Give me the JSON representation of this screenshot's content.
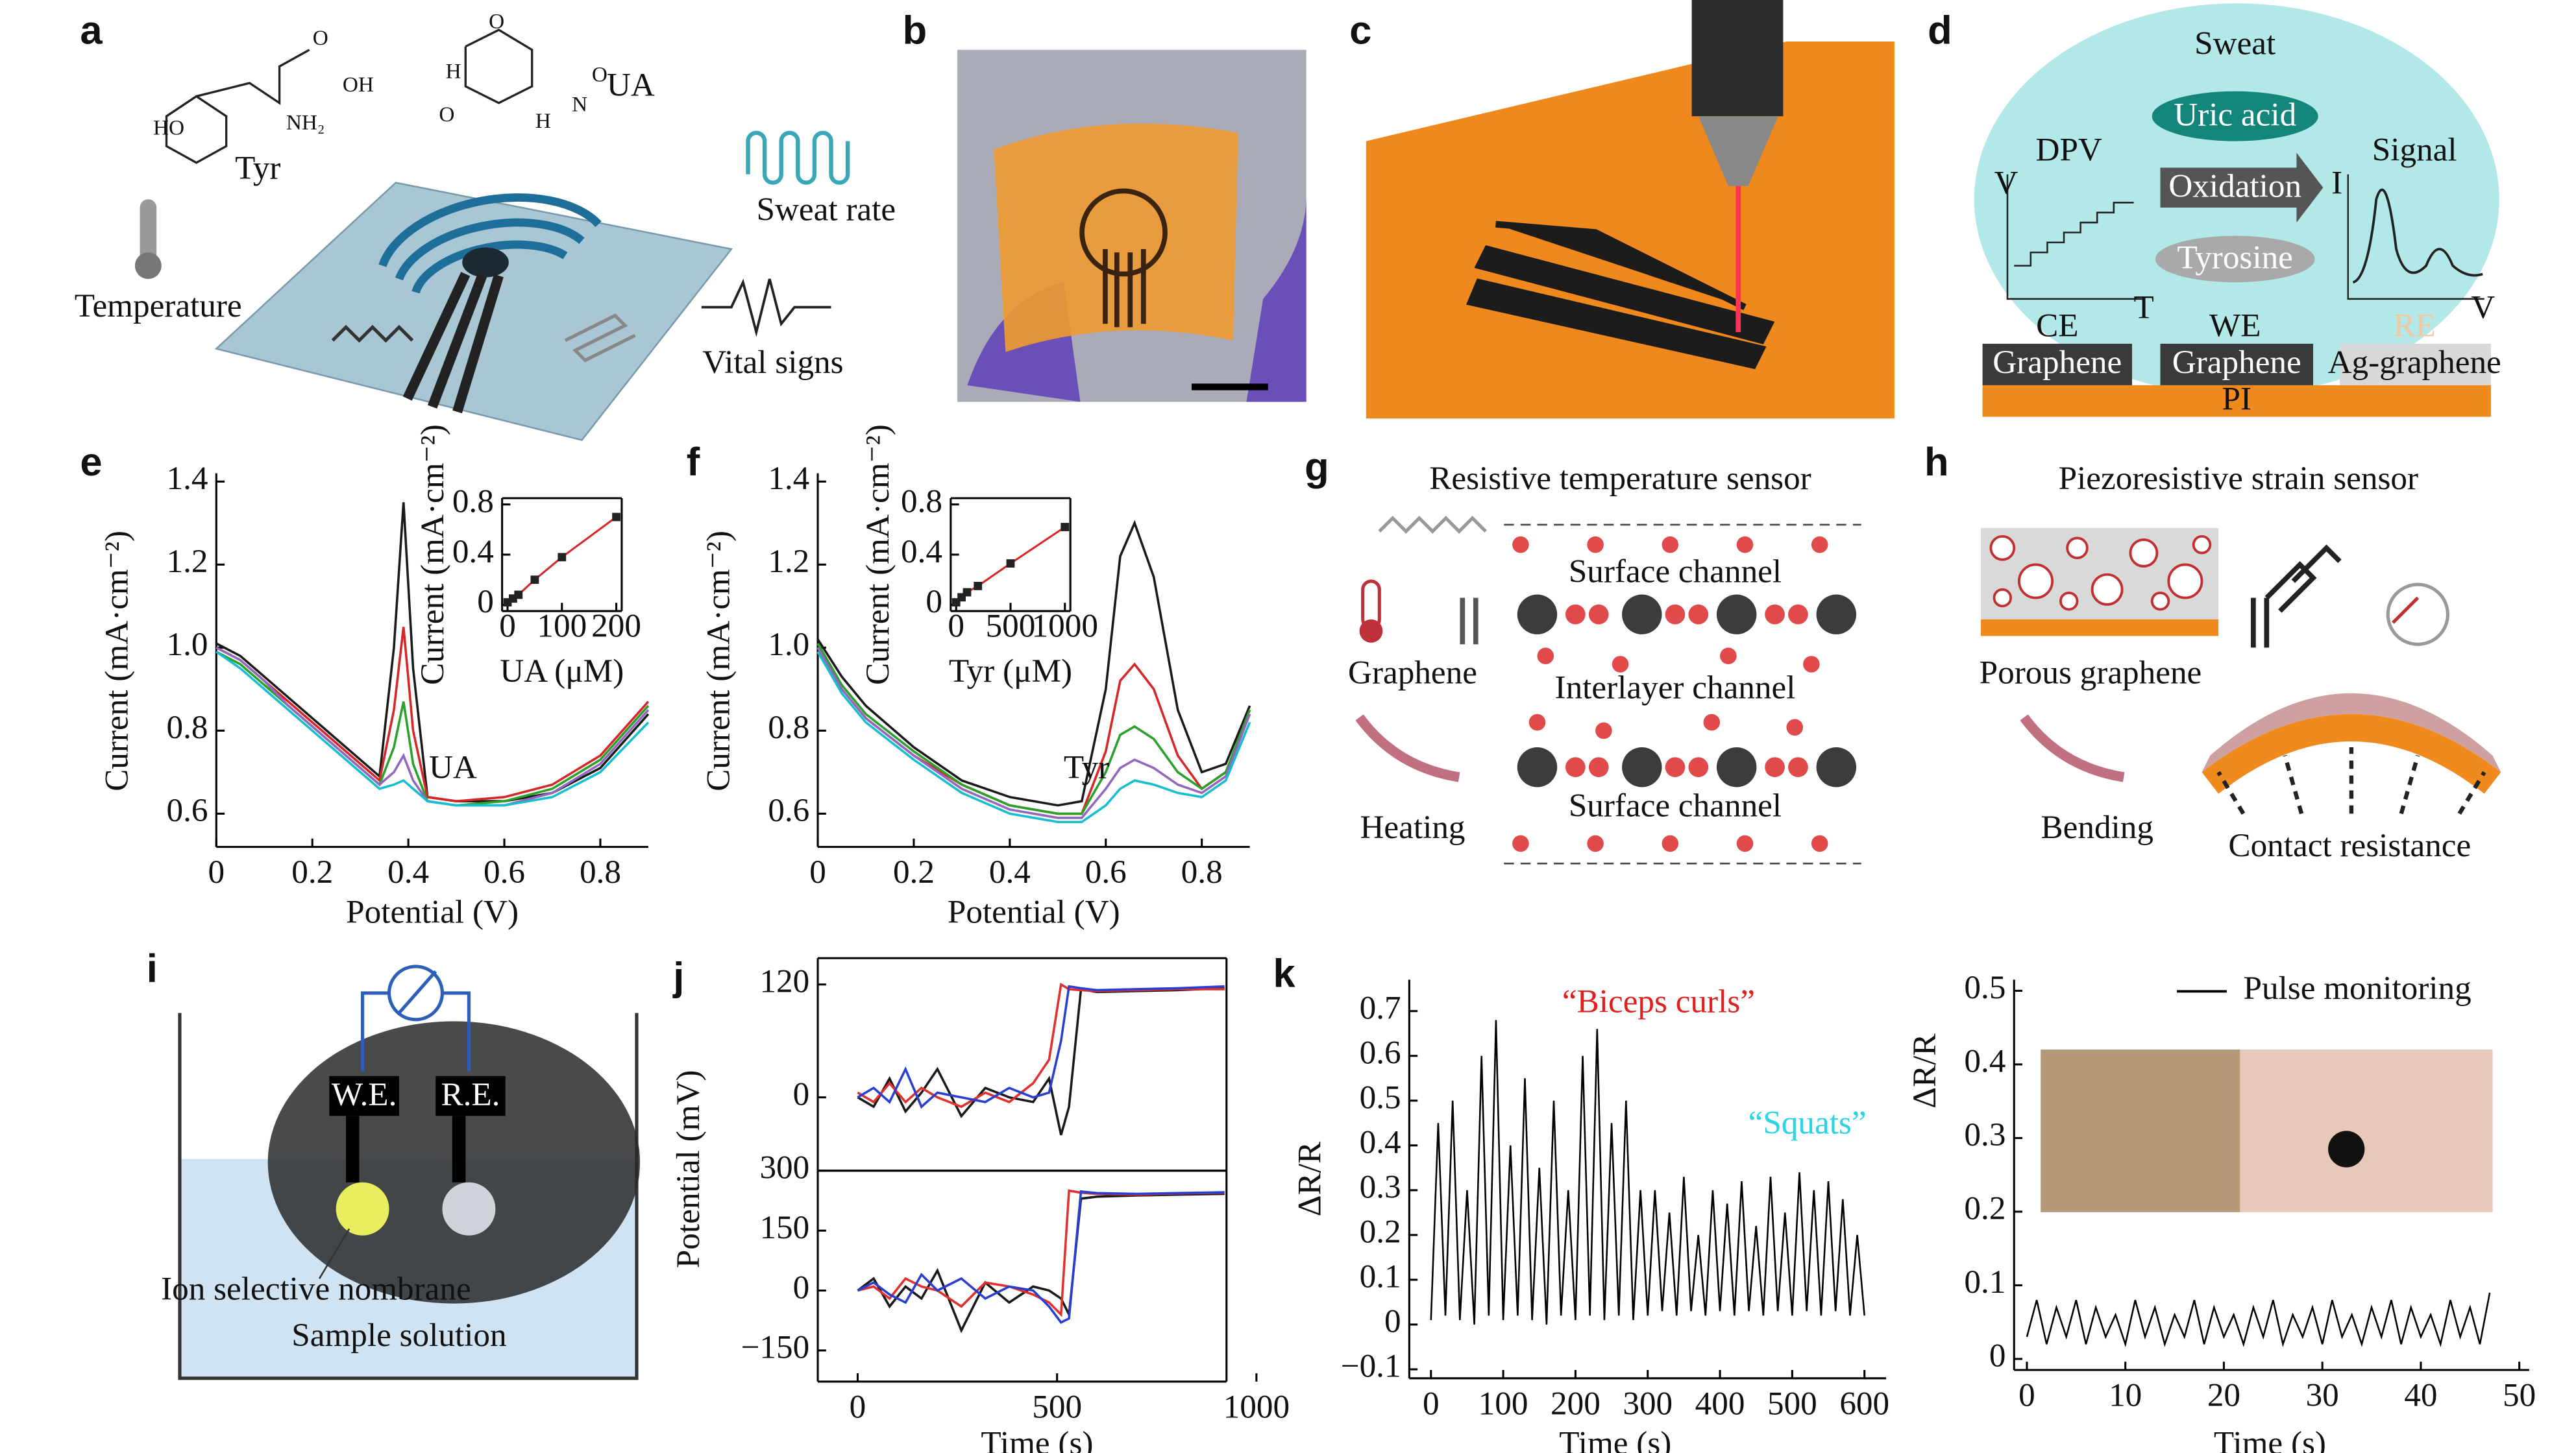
{
  "panel_labels": [
    "a",
    "b",
    "c",
    "d",
    "e",
    "f",
    "g",
    "h",
    "i",
    "j",
    "k"
  ],
  "panel_a": {
    "tyr": "Tyr",
    "ua": "UA",
    "temperature": "Temperature",
    "sweat_rate": "Sweat rate",
    "vital_signs": "Vital signs",
    "atoms": [
      "HO",
      "O",
      "OH",
      "NH₂",
      "O",
      "O",
      "O",
      "H",
      "N",
      "H"
    ]
  },
  "panel_d": {
    "sweat": "Sweat",
    "uric_acid": "Uric acid",
    "dpv": "DPV",
    "signal": "Signal",
    "oxidation": "Oxidation",
    "tyrosine": "Tyrosine",
    "axis_v": "V",
    "axis_t": "T",
    "axis_i": "I",
    "axis_v2": "V",
    "electrodes": [
      "CE",
      "WE",
      "RE"
    ],
    "materials": [
      "Graphene",
      "Graphene",
      "Ag-graphene"
    ],
    "substrate": "PI"
  },
  "panel_g": {
    "title": "Resistive temperature sensor",
    "channels": [
      "Surface channel",
      "Interlayer channel",
      "Surface channel"
    ],
    "graphene": "Graphene",
    "heating": "Heating"
  },
  "panel_h": {
    "title": "Piezoresistive strain sensor",
    "porous": "Porous graphene",
    "bending": "Bending",
    "contact": "Contact resistance"
  },
  "panel_i": {
    "we": "W.E.",
    "re": "R.E.",
    "membrane": "Ion selective nombrane",
    "solution": "Sample solution"
  },
  "chart_data": [
    {
      "type": "line",
      "xlabel": "Potential (V)",
      "ylabel": "Current (mA·cm⁻²)",
      "x": [
        0,
        0.05,
        0.1,
        0.15,
        0.2,
        0.25,
        0.3,
        0.34,
        0.37,
        0.39,
        0.41,
        0.44,
        0.5,
        0.6,
        0.7,
        0.8,
        0.9
      ],
      "series": [
        {
          "color": "#1a1a1a",
          "values": [
            1.01,
            0.98,
            0.93,
            0.88,
            0.83,
            0.78,
            0.73,
            0.69,
            1.0,
            1.35,
            0.95,
            0.64,
            0.63,
            0.63,
            0.65,
            0.71,
            0.84
          ]
        },
        {
          "color": "#d62728",
          "values": [
            1.0,
            0.97,
            0.92,
            0.87,
            0.82,
            0.77,
            0.72,
            0.68,
            0.85,
            1.05,
            0.8,
            0.64,
            0.63,
            0.64,
            0.67,
            0.74,
            0.87
          ]
        },
        {
          "color": "#2ca02c",
          "values": [
            0.99,
            0.96,
            0.91,
            0.86,
            0.81,
            0.76,
            0.71,
            0.67,
            0.76,
            0.87,
            0.72,
            0.63,
            0.62,
            0.63,
            0.66,
            0.73,
            0.86
          ]
        },
        {
          "color": "#9467bd",
          "values": [
            1.0,
            0.97,
            0.92,
            0.86,
            0.81,
            0.76,
            0.71,
            0.67,
            0.7,
            0.74,
            0.68,
            0.63,
            0.62,
            0.62,
            0.65,
            0.72,
            0.85
          ]
        },
        {
          "color": "#17becf",
          "values": [
            0.99,
            0.95,
            0.9,
            0.85,
            0.8,
            0.75,
            0.7,
            0.66,
            0.67,
            0.68,
            0.66,
            0.63,
            0.62,
            0.62,
            0.64,
            0.7,
            0.82
          ]
        }
      ],
      "xlim": [
        0,
        0.9
      ],
      "ylim": [
        0.52,
        1.42
      ],
      "xticks": [
        0,
        0.2,
        0.4,
        0.6,
        0.8
      ],
      "yticks": [
        0.6,
        0.8,
        {
          "value": 1,
          "label": "1.0"
        },
        1.2,
        1.4
      ],
      "annotations": [
        {
          "text": "UA"
        }
      ]
    },
    {
      "type": "scatter",
      "xlabel": "UA (μM)",
      "ylabel": "Current (mA·cm⁻²)",
      "x": [
        0,
        10,
        20,
        50,
        100,
        200
      ],
      "series": [
        {
          "color": "#222",
          "line_color": "#d62728",
          "values": [
            0.02,
            0.05,
            0.08,
            0.2,
            0.38,
            0.7
          ]
        }
      ],
      "xlim": [
        -10,
        210
      ],
      "ylim": [
        -0.05,
        0.85
      ],
      "xticks": [
        0,
        100,
        200
      ],
      "yticks": [
        0,
        0.4,
        0.8
      ]
    },
    {
      "type": "line",
      "xlabel": "Potential (V)",
      "ylabel": "Current (mA·cm⁻²)",
      "x": [
        0,
        0.05,
        0.1,
        0.2,
        0.3,
        0.4,
        0.5,
        0.55,
        0.6,
        0.63,
        0.66,
        0.7,
        0.75,
        0.8,
        0.85,
        0.9
      ],
      "series": [
        {
          "color": "#1a1a1a",
          "values": [
            1.02,
            0.93,
            0.86,
            0.76,
            0.68,
            0.64,
            0.62,
            0.63,
            0.9,
            1.22,
            1.3,
            1.17,
            0.85,
            0.7,
            0.72,
            0.86
          ]
        },
        {
          "color": "#d62728",
          "values": [
            1.0,
            0.9,
            0.83,
            0.74,
            0.67,
            0.62,
            0.6,
            0.6,
            0.75,
            0.92,
            0.96,
            0.9,
            0.74,
            0.66,
            0.7,
            0.84
          ]
        },
        {
          "color": "#2ca02c",
          "values": [
            1.01,
            0.91,
            0.84,
            0.75,
            0.67,
            0.62,
            0.6,
            0.6,
            0.7,
            0.79,
            0.81,
            0.78,
            0.7,
            0.66,
            0.7,
            0.85
          ]
        },
        {
          "color": "#9467bd",
          "values": [
            1.0,
            0.9,
            0.83,
            0.74,
            0.66,
            0.61,
            0.59,
            0.59,
            0.66,
            0.71,
            0.73,
            0.71,
            0.67,
            0.65,
            0.69,
            0.84
          ]
        },
        {
          "color": "#17becf",
          "values": [
            0.99,
            0.89,
            0.82,
            0.73,
            0.65,
            0.6,
            0.58,
            0.58,
            0.62,
            0.66,
            0.68,
            0.67,
            0.65,
            0.64,
            0.68,
            0.82
          ]
        }
      ],
      "xlim": [
        0,
        0.9
      ],
      "ylim": [
        0.52,
        1.42
      ],
      "xticks": [
        0,
        0.2,
        0.4,
        0.6,
        0.8
      ],
      "yticks": [
        0.6,
        0.8,
        {
          "value": 1,
          "label": "1.0"
        },
        1.2,
        1.4
      ],
      "annotations": [
        {
          "text": "Tyr"
        }
      ]
    },
    {
      "type": "scatter",
      "xlabel": "Tyr (μM)",
      "ylabel": "Current (mA·cm⁻²)",
      "x": [
        0,
        50,
        100,
        200,
        500,
        1000
      ],
      "series": [
        {
          "color": "#222",
          "line_color": "#d62728",
          "values": [
            0.02,
            0.06,
            0.1,
            0.15,
            0.33,
            0.62
          ]
        }
      ],
      "xlim": [
        -50,
        1050
      ],
      "ylim": [
        -0.05,
        0.85
      ],
      "xticks": [
        0,
        500,
        1000
      ],
      "yticks": [
        0,
        0.4,
        0.8
      ]
    },
    {
      "type": "line",
      "x": [
        0,
        40,
        80,
        120,
        160,
        200,
        260,
        320,
        380,
        440,
        480,
        510,
        530,
        560,
        600,
        700,
        800,
        920
      ],
      "series": [
        {
          "color": "#1a1a1a",
          "values": [
            0,
            -10,
            20,
            -15,
            5,
            30,
            -20,
            10,
            0,
            -5,
            20,
            -40,
            -10,
            115,
            112,
            113,
            114,
            116
          ]
        },
        {
          "color": "#e03030",
          "values": [
            5,
            -5,
            15,
            -5,
            10,
            0,
            -10,
            5,
            -5,
            15,
            40,
            120,
            115,
            114,
            113,
            114,
            115,
            115
          ]
        },
        {
          "color": "#2a3fd0",
          "values": [
            0,
            10,
            -5,
            30,
            -10,
            5,
            0,
            -5,
            10,
            0,
            5,
            60,
            118,
            116,
            114,
            115,
            116,
            118
          ]
        }
      ],
      "xlim": [
        -100,
        925
      ],
      "ylim": [
        -78,
        148
      ],
      "yticks": [
        0,
        120
      ]
    },
    {
      "type": "line",
      "xlabel": "Time (s)",
      "ylabel": "Potential (mV)",
      "x": [
        0,
        40,
        80,
        120,
        160,
        200,
        260,
        320,
        380,
        440,
        480,
        510,
        530,
        560,
        600,
        700,
        800,
        920
      ],
      "series": [
        {
          "color": "#1a1a1a",
          "values": [
            0,
            30,
            -40,
            10,
            -20,
            50,
            -100,
            20,
            -30,
            10,
            0,
            -20,
            -60,
            230,
            235,
            238,
            240,
            242
          ]
        },
        {
          "color": "#e03030",
          "values": [
            0,
            10,
            -20,
            30,
            10,
            0,
            -40,
            20,
            10,
            -10,
            -30,
            -60,
            250,
            245,
            242,
            240,
            243,
            245
          ]
        },
        {
          "color": "#2a3fd0",
          "values": [
            0,
            20,
            -10,
            -30,
            40,
            0,
            30,
            -20,
            10,
            0,
            -40,
            -80,
            -70,
            248,
            244,
            242,
            244,
            246
          ]
        }
      ],
      "xlim": [
        -100,
        925
      ],
      "ylim": [
        -228,
        300
      ],
      "xticks": [
        0,
        500,
        1000
      ],
      "yticks": [
        {
          "value": -150,
          "label": "−150"
        },
        0,
        150,
        300
      ]
    },
    {
      "type": "line",
      "xlabel": "Time (s)",
      "ylabel": "ΔR/R",
      "x": [
        0,
        10,
        20,
        30,
        40,
        50,
        60,
        70,
        80,
        90,
        100,
        110,
        120,
        130,
        140,
        150,
        160,
        170,
        180,
        190,
        200,
        210,
        220,
        230,
        240,
        250,
        260,
        270,
        280,
        290,
        300,
        310,
        320,
        330,
        340,
        350,
        360,
        370,
        380,
        390,
        400,
        410,
        420,
        430,
        440,
        450,
        460,
        470,
        480,
        490,
        500,
        510,
        520,
        530,
        540,
        550,
        560,
        570,
        580,
        590,
        600
      ],
      "series": [
        {
          "color": "#000",
          "values": [
            0.01,
            0.45,
            0.02,
            0.5,
            0.01,
            0.3,
            0.0,
            0.6,
            0.02,
            0.68,
            0.01,
            0.4,
            0.02,
            0.55,
            0.01,
            0.35,
            0.0,
            0.5,
            0.02,
            0.3,
            0.01,
            0.6,
            0.02,
            0.66,
            0.01,
            0.45,
            0.02,
            0.5,
            0.01,
            0.3,
            0.02,
            0.3,
            0.03,
            0.25,
            0.02,
            0.33,
            0.03,
            0.2,
            0.02,
            0.3,
            0.03,
            0.27,
            0.02,
            0.32,
            0.03,
            0.22,
            0.02,
            0.33,
            0.03,
            0.25,
            0.02,
            0.34,
            0.03,
            0.3,
            0.02,
            0.32,
            0.03,
            0.28,
            0.02,
            0.2,
            0.02
          ]
        }
      ],
      "xlim": [
        -30,
        630
      ],
      "ylim": [
        -0.12,
        0.77
      ],
      "xticks": [
        0,
        100,
        200,
        300,
        400,
        500,
        600
      ],
      "yticks": [
        {
          "value": -0.1,
          "label": "−0.1"
        },
        0,
        0.1,
        0.2,
        0.3,
        0.4,
        0.5,
        0.6,
        0.7
      ],
      "annotations": [
        {
          "text": "“Biceps curls”",
          "color": "#e0201b"
        },
        {
          "text": "“Squats”",
          "color": "#2ad4e6"
        }
      ]
    },
    {
      "type": "line",
      "xlabel": "Time (s)",
      "ylabel": "ΔR/R",
      "x": [
        0,
        1,
        2,
        3,
        4,
        5,
        6,
        7,
        8,
        9,
        10,
        11,
        12,
        13,
        14,
        15,
        16,
        17,
        18,
        19,
        20,
        21,
        22,
        23,
        24,
        25,
        26,
        27,
        28,
        29,
        30,
        31,
        32,
        33,
        34,
        35,
        36,
        37,
        38,
        39,
        40,
        41,
        42,
        43,
        44,
        45,
        46,
        47
      ],
      "series": [
        {
          "name": "Pulse monitoring",
          "color": "#000",
          "values": [
            0.03,
            0.08,
            0.02,
            0.07,
            0.03,
            0.08,
            0.02,
            0.07,
            0.03,
            0.06,
            0.02,
            0.08,
            0.03,
            0.07,
            0.02,
            0.06,
            0.03,
            0.08,
            0.02,
            0.07,
            0.03,
            0.06,
            0.02,
            0.07,
            0.03,
            0.08,
            0.02,
            0.06,
            0.03,
            0.07,
            0.02,
            0.08,
            0.03,
            0.06,
            0.02,
            0.07,
            0.03,
            0.08,
            0.02,
            0.07,
            0.03,
            0.06,
            0.02,
            0.08,
            0.03,
            0.07,
            0.02,
            0.09
          ]
        }
      ],
      "xlim": [
        -1.3,
        51
      ],
      "ylim": [
        -0.015,
        0.515
      ],
      "xticks": [
        0,
        10,
        20,
        30,
        40,
        50
      ],
      "yticks": [
        0,
        0.1,
        0.2,
        0.3,
        0.4,
        0.5
      ],
      "legend": "upper right"
    }
  ]
}
